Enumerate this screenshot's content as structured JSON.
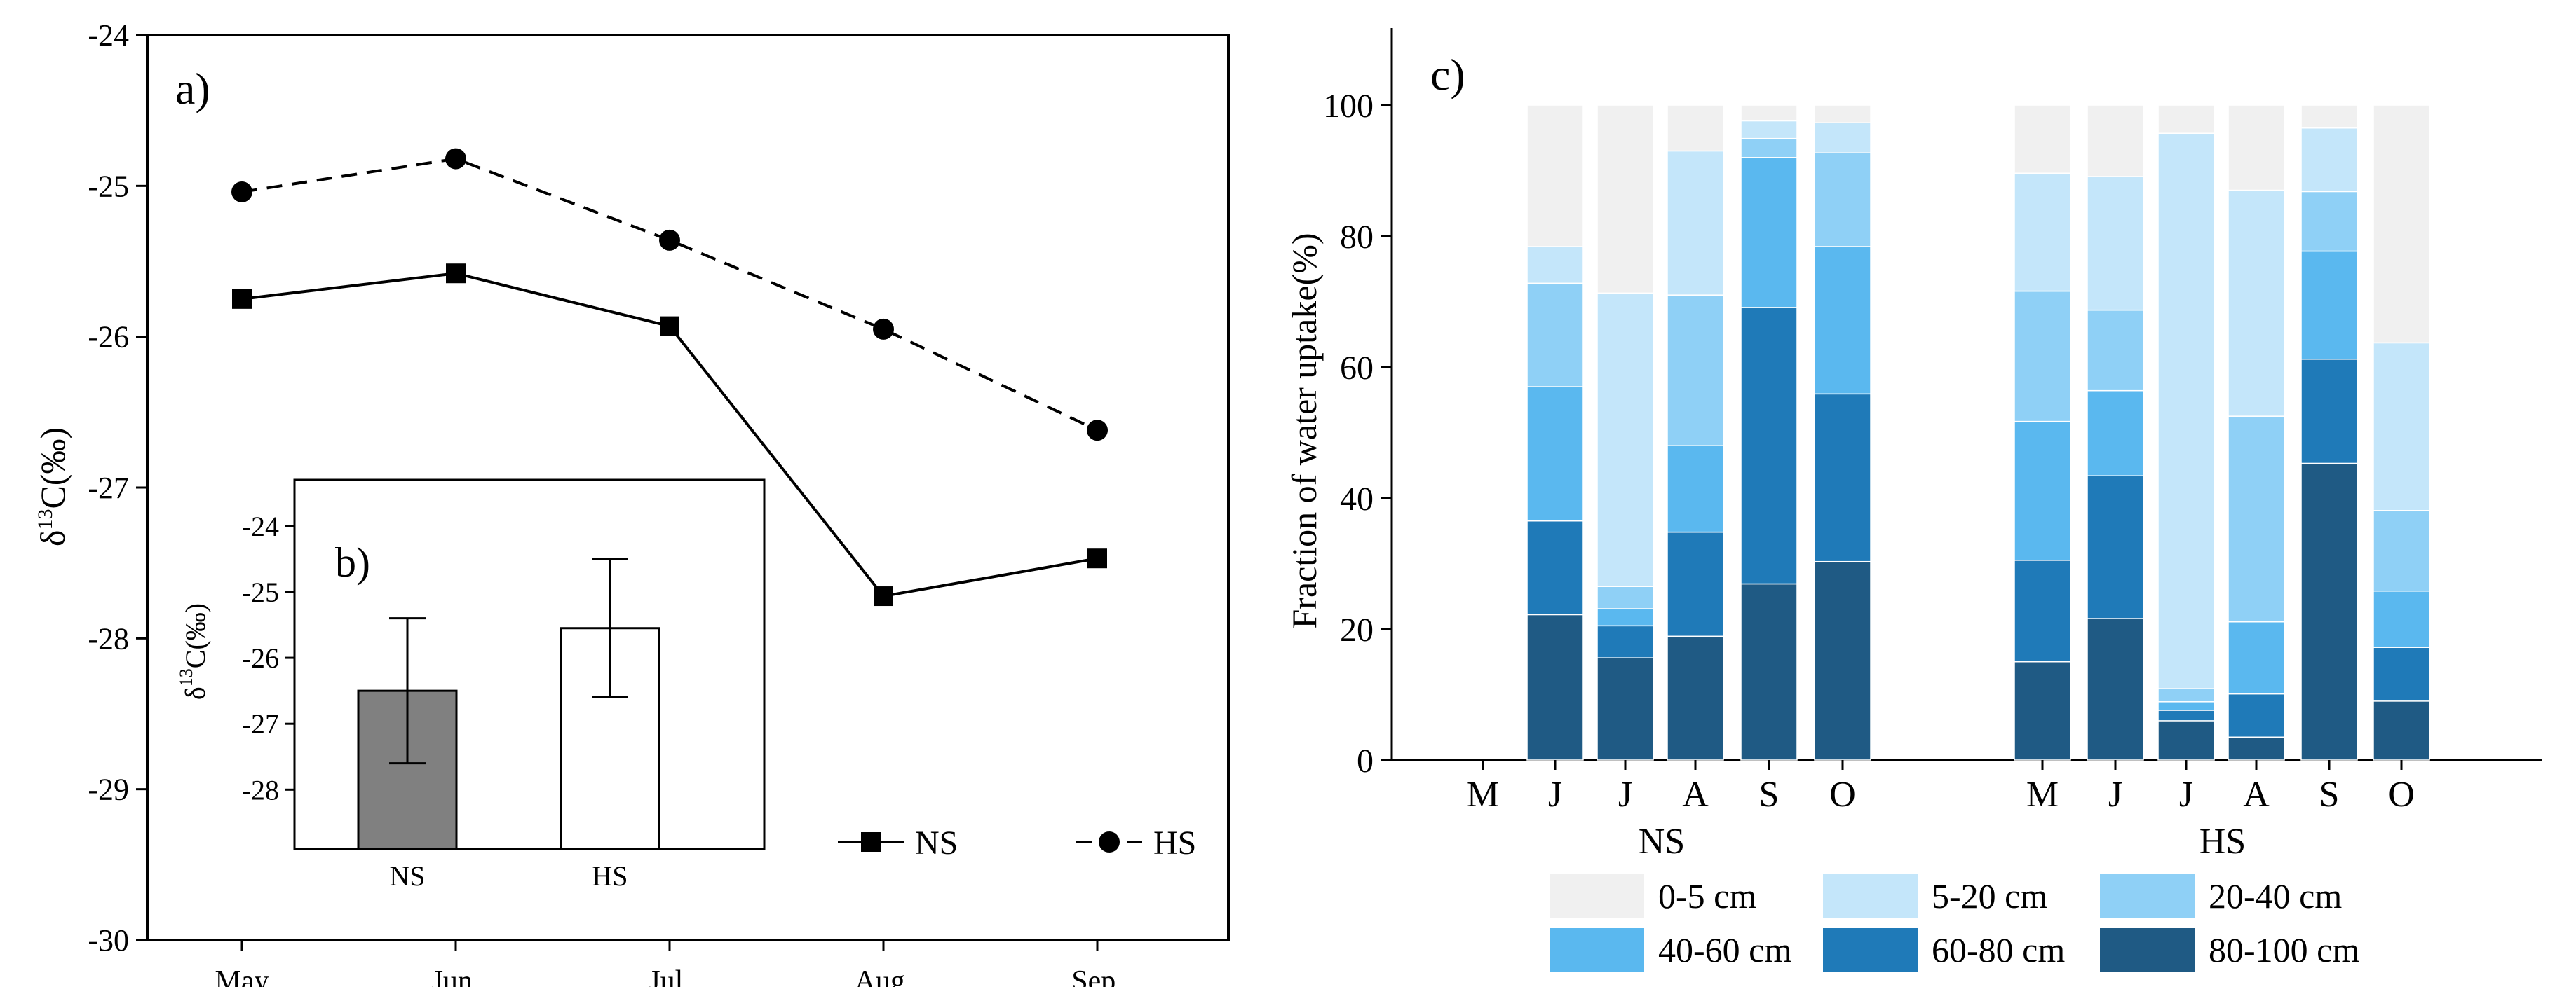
{
  "chart_data": [
    {
      "panel": "a)",
      "type": "line",
      "ylabel": "δ13C(‰)",
      "ylabel_parts": [
        "δ",
        "13",
        "C(‰)"
      ],
      "categories": [
        "May",
        "Jun.",
        "Jul.",
        "Aug.",
        "Sep."
      ],
      "yticks": [
        "-24",
        "-25",
        "-26",
        "-27",
        "-28",
        "-29",
        "-30"
      ],
      "ylim": [
        -30,
        -24
      ],
      "legend_position": "bottom-right",
      "series": [
        {
          "name": "NS",
          "values": [
            -25.75,
            -25.58,
            -25.93,
            -27.72,
            -27.47
          ],
          "color": "#000000",
          "style": "solid",
          "marker": "square"
        },
        {
          "name": "HS",
          "values": [
            -25.04,
            -24.82,
            -25.36,
            -25.95,
            -26.62
          ],
          "color": "#000000",
          "style": "dashed",
          "marker": "circle"
        }
      ]
    },
    {
      "panel": "b)",
      "type": "bar",
      "ylabel": "δ13C(‰)",
      "ylabel_parts": [
        "δ",
        "13",
        "C(‰)"
      ],
      "categories": [
        "NS",
        "HS"
      ],
      "values": [
        -26.5,
        -25.55
      ],
      "error": [
        1.1,
        1.05
      ],
      "colors": [
        "#808080",
        "#ffffff"
      ],
      "yticks": [
        "-24",
        "-25",
        "-26",
        "-27",
        "-28"
      ],
      "ylim": [
        -28.9,
        -23.3
      ]
    },
    {
      "panel": "c)",
      "type": "bar",
      "stacked": true,
      "ylabel": "Fraction of water uptake(%)",
      "yticks": [
        "0",
        "20",
        "40",
        "60",
        "80",
        "100"
      ],
      "ylim": [
        0,
        110
      ],
      "groups": [
        {
          "label": "NS",
          "months": [
            "M",
            "J",
            "J",
            "A",
            "S",
            "O"
          ]
        },
        {
          "label": "HS",
          "months": [
            "M",
            "J",
            "J",
            "A",
            "S",
            "O"
          ]
        }
      ],
      "layers": [
        {
          "name": "80-100 cm",
          "color": "#1f5a84"
        },
        {
          "name": "60-80 cm",
          "color": "#1f7ab8"
        },
        {
          "name": "40-60 cm",
          "color": "#5ab8ef"
        },
        {
          "name": "20-40 cm",
          "color": "#8fd0f6"
        },
        {
          "name": "5-20 cm",
          "color": "#c4e6fa"
        },
        {
          "name": "0-5 cm",
          "color": "#f0f0f0"
        }
      ],
      "legend_order": [
        "0-5 cm",
        "5-20 cm",
        "20-40 cm",
        "40-60 cm",
        "60-80 cm",
        "80-100 cm"
      ],
      "bars": [
        {
          "group": "NS",
          "month": "M",
          "values": [
            0,
            0,
            0,
            0,
            0,
            0
          ]
        },
        {
          "group": "NS",
          "month": "J",
          "values": [
            22.2,
            14.3,
            20.5,
            15.8,
            5.6,
            21.6
          ]
        },
        {
          "group": "NS",
          "month": "J",
          "values": [
            15.6,
            4.9,
            2.6,
            3.4,
            44.8,
            28.7
          ]
        },
        {
          "group": "NS",
          "month": "A",
          "values": [
            18.9,
            15.9,
            13.2,
            23.0,
            22.0,
            7.0
          ]
        },
        {
          "group": "NS",
          "month": "S",
          "values": [
            26.9,
            42.2,
            22.9,
            2.9,
            2.7,
            2.4
          ]
        },
        {
          "group": "NS",
          "month": "O",
          "values": [
            30.3,
            25.6,
            22.5,
            14.3,
            4.6,
            2.7
          ]
        },
        {
          "group": "HS",
          "month": "M",
          "values": [
            15.0,
            15.5,
            21.2,
            19.9,
            18.0,
            10.4
          ]
        },
        {
          "group": "HS",
          "month": "J",
          "values": [
            21.6,
            21.8,
            13.0,
            12.3,
            20.4,
            10.9
          ]
        },
        {
          "group": "HS",
          "month": "J",
          "values": [
            6.0,
            1.6,
            1.3,
            2.0,
            84.8,
            4.3
          ]
        },
        {
          "group": "HS",
          "month": "A",
          "values": [
            3.5,
            6.6,
            11.0,
            31.4,
            34.5,
            13.0
          ]
        },
        {
          "group": "HS",
          "month": "S",
          "values": [
            45.3,
            15.9,
            16.5,
            9.1,
            9.7,
            3.5
          ]
        },
        {
          "group": "HS",
          "month": "O",
          "values": [
            9.0,
            8.2,
            8.6,
            12.3,
            25.6,
            36.3
          ]
        }
      ]
    }
  ]
}
